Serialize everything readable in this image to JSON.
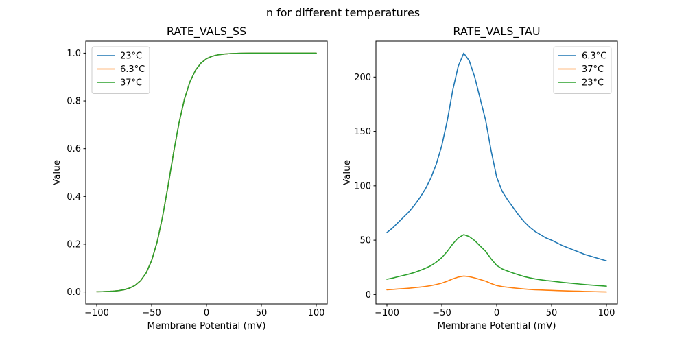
{
  "suptitle": "n for different temperatures",
  "colors": {
    "blue": "#1f77b4",
    "orange": "#ff7f0e",
    "green": "#2ca02c"
  },
  "chart_data": [
    {
      "type": "line",
      "title": "RATE_VALS_SS",
      "xlabel": "Membrane Potential (mV)",
      "ylabel": "Value",
      "xlim": [
        -110,
        110
      ],
      "ylim": [
        -0.05,
        1.05
      ],
      "xtick_vals": [
        -100,
        -50,
        0,
        50,
        100
      ],
      "xtick_labels": [
        "−100",
        "−50",
        "0",
        "50",
        "100"
      ],
      "ytick_vals": [
        0.0,
        0.2,
        0.4,
        0.6,
        0.8,
        1.0
      ],
      "ytick_labels": [
        "0.0",
        "0.2",
        "0.4",
        "0.6",
        "0.8",
        "1.0"
      ],
      "legend_position": "upper-left",
      "grid": false,
      "x": [
        -100,
        -95,
        -90,
        -85,
        -80,
        -75,
        -70,
        -65,
        -60,
        -55,
        -50,
        -45,
        -40,
        -35,
        -30,
        -25,
        -20,
        -15,
        -10,
        -5,
        0,
        5,
        10,
        15,
        20,
        25,
        30,
        35,
        40,
        45,
        50,
        55,
        60,
        65,
        70,
        75,
        80,
        85,
        90,
        95,
        100
      ],
      "series": [
        {
          "name": "23°C",
          "color": "#1f77b4",
          "values": [
            0.0006,
            0.001,
            0.0018,
            0.0031,
            0.0054,
            0.0094,
            0.0162,
            0.0278,
            0.0474,
            0.0795,
            0.1312,
            0.2086,
            0.3151,
            0.4446,
            0.5827,
            0.7089,
            0.8088,
            0.8808,
            0.9285,
            0.9585,
            0.9767,
            0.9868,
            0.9925,
            0.9957,
            0.9976,
            0.9986,
            0.9992,
            0.9996,
            0.9998,
            0.9999,
            0.9999,
            1.0,
            1.0,
            1.0,
            1.0,
            1.0,
            1.0,
            1.0,
            1.0,
            1.0,
            1.0
          ]
        },
        {
          "name": "6.3°C",
          "color": "#ff7f0e",
          "values": [
            0.0006,
            0.001,
            0.0018,
            0.0031,
            0.0054,
            0.0094,
            0.0162,
            0.0278,
            0.0474,
            0.0795,
            0.1312,
            0.2086,
            0.3151,
            0.4446,
            0.5827,
            0.7089,
            0.8088,
            0.8808,
            0.9285,
            0.9585,
            0.9767,
            0.9868,
            0.9925,
            0.9957,
            0.9976,
            0.9986,
            0.9992,
            0.9996,
            0.9998,
            0.9999,
            0.9999,
            1.0,
            1.0,
            1.0,
            1.0,
            1.0,
            1.0,
            1.0,
            1.0,
            1.0,
            1.0
          ]
        },
        {
          "name": "37°C",
          "color": "#2ca02c",
          "values": [
            0.0006,
            0.001,
            0.0018,
            0.0031,
            0.0054,
            0.0094,
            0.0162,
            0.0278,
            0.0474,
            0.0795,
            0.1312,
            0.2086,
            0.3151,
            0.4446,
            0.5827,
            0.7089,
            0.8088,
            0.8808,
            0.9285,
            0.9585,
            0.9767,
            0.9868,
            0.9925,
            0.9957,
            0.9976,
            0.9986,
            0.9992,
            0.9996,
            0.9998,
            0.9999,
            0.9999,
            1.0,
            1.0,
            1.0,
            1.0,
            1.0,
            1.0,
            1.0,
            1.0,
            1.0,
            1.0
          ]
        }
      ]
    },
    {
      "type": "line",
      "title": "RATE_VALS_TAU",
      "xlabel": "Membrane Potential (mV)",
      "ylabel": "Value",
      "xlim": [
        -110,
        110
      ],
      "ylim": [
        -8.6,
        233
      ],
      "xtick_vals": [
        -100,
        -50,
        0,
        50,
        100
      ],
      "xtick_labels": [
        "−100",
        "−50",
        "0",
        "50",
        "100"
      ],
      "ytick_vals": [
        0,
        50,
        100,
        150,
        200
      ],
      "ytick_labels": [
        "0",
        "50",
        "100",
        "150",
        "200"
      ],
      "legend_position": "upper-right",
      "grid": false,
      "x": [
        -100,
        -95,
        -90,
        -85,
        -80,
        -75,
        -70,
        -65,
        -60,
        -55,
        -50,
        -45,
        -40,
        -35,
        -30,
        -25,
        -20,
        -15,
        -10,
        -5,
        0,
        5,
        10,
        15,
        20,
        25,
        30,
        35,
        40,
        45,
        50,
        55,
        60,
        65,
        70,
        75,
        80,
        85,
        90,
        95,
        100
      ],
      "series": [
        {
          "name": "6.3°C",
          "color": "#1f77b4",
          "values": [
            57,
            61,
            66,
            71,
            76,
            82,
            89,
            97,
            107,
            120,
            137,
            160,
            188,
            210,
            222,
            215,
            200,
            180,
            160,
            132,
            108,
            95,
            87,
            80,
            73,
            67,
            62,
            58,
            55,
            52,
            50,
            47.5,
            45,
            43,
            41,
            39,
            37,
            35.5,
            34,
            32.5,
            31
          ]
        },
        {
          "name": "37°C",
          "color": "#ff7f0e",
          "values": [
            4.4,
            4.7,
            5.1,
            5.4,
            5.8,
            6.3,
            6.8,
            7.4,
            8.2,
            9.2,
            10.5,
            12.3,
            14.4,
            16.1,
            17,
            16.5,
            15.3,
            13.8,
            12.3,
            10.1,
            8.3,
            7.3,
            6.7,
            6.1,
            5.6,
            5.1,
            4.7,
            4.4,
            4.2,
            4.0,
            3.8,
            3.6,
            3.4,
            3.3,
            3.1,
            3.0,
            2.8,
            2.7,
            2.6,
            2.5,
            2.4
          ]
        },
        {
          "name": "23°C",
          "color": "#2ca02c",
          "values": [
            14.1,
            15.1,
            16.4,
            17.6,
            18.8,
            20.3,
            22.1,
            24.1,
            26.5,
            29.8,
            34,
            39.7,
            46.6,
            52.1,
            55.1,
            53.3,
            49.6,
            44.6,
            39.7,
            32.7,
            26.8,
            23.6,
            21.6,
            19.8,
            18.1,
            16.6,
            15.4,
            14.4,
            13.6,
            12.9,
            12.4,
            11.8,
            11.2,
            10.7,
            10.2,
            9.7,
            9.2,
            8.8,
            8.4,
            8.1,
            7.7
          ]
        }
      ]
    }
  ]
}
